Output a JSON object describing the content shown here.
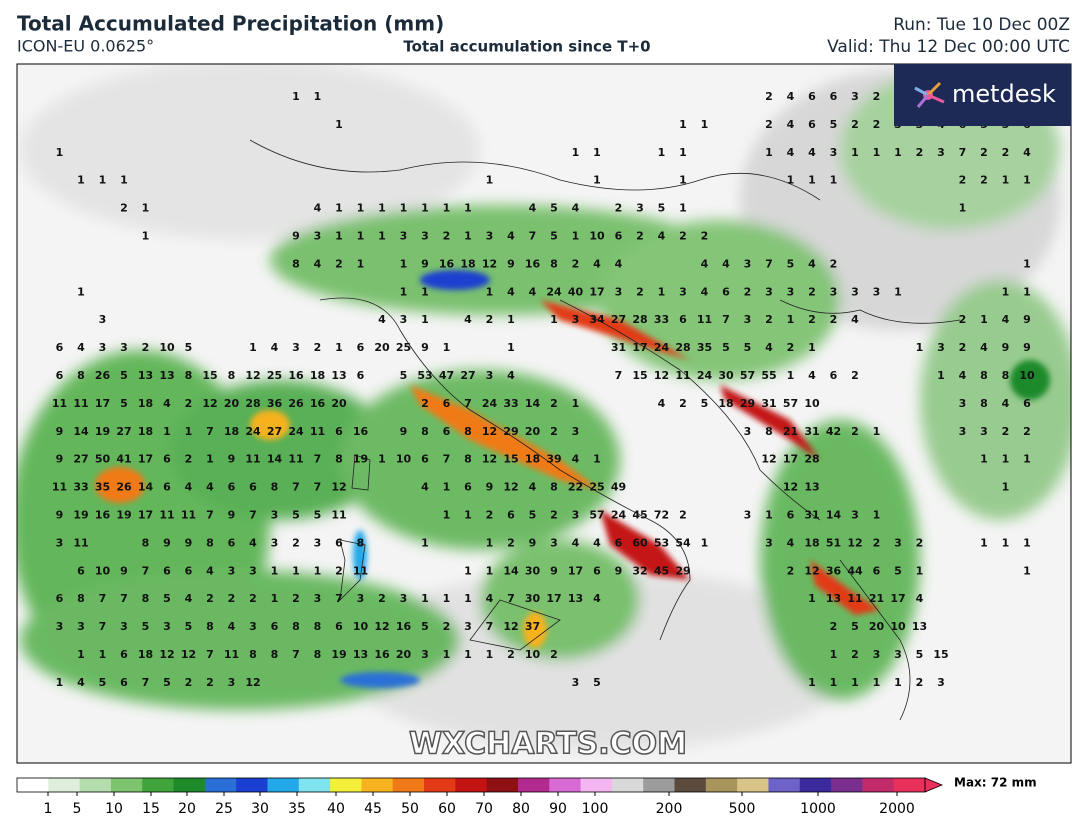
{
  "header": {
    "title": "Total Accumulated Precipitation (mm)",
    "model": "ICON-EU 0.0625°",
    "subtitle": "Total accumulation since T+0",
    "run": "Run: Tue 10 Dec 00Z",
    "valid": "Valid: Thu 12 Dec 00:00 UTC",
    "logo": "metdesk"
  },
  "watermark": "WXCHARTS.COM",
  "colorbar": {
    "labels": [
      1,
      5,
      10,
      15,
      20,
      25,
      30,
      35,
      40,
      45,
      50,
      60,
      70,
      80,
      90,
      100,
      200,
      500,
      1000,
      2000
    ],
    "max_label": "Max: 72 mm",
    "colors": [
      "#ffffff",
      "#dfeedd",
      "#b5dcad",
      "#7dc46e",
      "#3fa53a",
      "#1f8a2a",
      "#2a6fd8",
      "#1b3fd0",
      "#24a9e8",
      "#7fe3f0",
      "#f3ef3a",
      "#f6b21f",
      "#f07a18",
      "#e23a16",
      "#c41313",
      "#8e0f14",
      "#b22a8e",
      "#d86ad4",
      "#f3b6f0",
      "#d9d9d9",
      "#9c9c9c",
      "#5a4b3c",
      "#a8955c",
      "#d8c389",
      "#6d62c8",
      "#3a2a9e",
      "#7a2f8f",
      "#c22a6a",
      "#e8305a"
    ]
  },
  "map_labels": [
    [
      1,
      1
    ],
    [
      2,
      4,
      6,
      6,
      3,
      2
    ],
    [
      1
    ],
    [
      1,
      1
    ],
    [
      2,
      4,
      6,
      5,
      2,
      2,
      3,
      3,
      4,
      6,
      5,
      5,
      6
    ],
    [
      1
    ],
    [
      1,
      1
    ],
    [
      1,
      1
    ],
    [
      1,
      4,
      4,
      3,
      1,
      1,
      1,
      2,
      3,
      7,
      2,
      2,
      4
    ],
    [
      1,
      1,
      1
    ],
    [
      1
    ],
    [
      1
    ],
    [
      1
    ],
    [
      1,
      1,
      1
    ],
    [
      2,
      2,
      1
    ],
    [
      1
    ],
    [
      2,
      1
    ],
    [
      4,
      1,
      1,
      1,
      1,
      1,
      1,
      1
    ],
    [
      4,
      5,
      4
    ],
    [
      2,
      3,
      5,
      1
    ],
    [
      1
    ],
    [
      1
    ],
    [
      9,
      3,
      1,
      1,
      1,
      3,
      3,
      2,
      1,
      3,
      4,
      7,
      5,
      1,
      10,
      6,
      2,
      4,
      2,
      2
    ],
    [
      8,
      4,
      2,
      1
    ],
    [
      1,
      9,
      16,
      18,
      12,
      9,
      16,
      8,
      2,
      4,
      4
    ],
    [
      4,
      4,
      3,
      7,
      5,
      4,
      2
    ],
    [
      1
    ],
    [
      1
    ],
    [
      1,
      1
    ],
    [
      1,
      4,
      4,
      24,
      40,
      17,
      3,
      2,
      1,
      3,
      4,
      6,
      2,
      3,
      3,
      2,
      3,
      3,
      3,
      1
    ],
    [
      1,
      1
    ],
    [
      3
    ],
    [
      4,
      3,
      1
    ],
    [
      4,
      2,
      1
    ],
    [
      1,
      3,
      34,
      27,
      28,
      33,
      6,
      11,
      7,
      3,
      2,
      1,
      2,
      2,
      4
    ],
    [
      2,
      1,
      4,
      9
    ],
    [
      6,
      4,
      3,
      3,
      2,
      10,
      5
    ],
    [
      1,
      4,
      3,
      2
    ],
    [
      1,
      6,
      20,
      25,
      9,
      1
    ],
    [
      1
    ],
    [
      31,
      17,
      24,
      28,
      35,
      5,
      5,
      4,
      2,
      1
    ],
    [
      1,
      3,
      2,
      4,
      9,
      9
    ],
    [
      6,
      8,
      26,
      5,
      13,
      13,
      8,
      15,
      8,
      12,
      25,
      16,
      18,
      13,
      6
    ],
    [
      5,
      53,
      47,
      27,
      3,
      4
    ],
    [
      7,
      15,
      12,
      11,
      24,
      30,
      57,
      55,
      1,
      4,
      6,
      2
    ],
    [
      1,
      4,
      8,
      8,
      10
    ],
    [
      11,
      11,
      17,
      5,
      18,
      4,
      2,
      12,
      20,
      28,
      36,
      26,
      16,
      20
    ],
    [
      2,
      6,
      7,
      24,
      33,
      14,
      2,
      1
    ],
    [
      4,
      2,
      5,
      18,
      29,
      31,
      57,
      10
    ],
    [
      3,
      8,
      4,
      6
    ],
    [
      9,
      14,
      19,
      27,
      18,
      1,
      1,
      7,
      18,
      24,
      27,
      24,
      11,
      6,
      16
    ],
    [
      9,
      8,
      6,
      8,
      12,
      29,
      20,
      2,
      3
    ],
    [
      3,
      8,
      21,
      31,
      42,
      2,
      1
    ],
    [
      3,
      3,
      2,
      2
    ],
    [
      9,
      27,
      50,
      41,
      17,
      6,
      2,
      1,
      9,
      11,
      14,
      11,
      7,
      8,
      19,
      1,
      10,
      6,
      7,
      8,
      12,
      15,
      18,
      39,
      4,
      1
    ],
    [
      12,
      17,
      28
    ],
    [
      1,
      1,
      1
    ],
    [
      11,
      33,
      35,
      26,
      14,
      6,
      4,
      4,
      6,
      6,
      8,
      7,
      7,
      12
    ],
    [
      4,
      1,
      6,
      9,
      12,
      4,
      8,
      22,
      25,
      49
    ],
    [
      12,
      13
    ],
    [
      1
    ],
    [
      9,
      19,
      16,
      19,
      17,
      11,
      11,
      7,
      9,
      7,
      3,
      5,
      5,
      11
    ],
    [
      1,
      1,
      2,
      6,
      5,
      2,
      3,
      57,
      24,
      45,
      72,
      2
    ],
    [
      3,
      1,
      6,
      31,
      14,
      3,
      1
    ],
    [
      3,
      11
    ],
    [
      8,
      9,
      9,
      8,
      6,
      4,
      3,
      2,
      3,
      6,
      8
    ],
    [
      1
    ],
    [
      1,
      2,
      9,
      3,
      4,
      4,
      6,
      60,
      53,
      54,
      1
    ],
    [
      3,
      4,
      18,
      51,
      12,
      2,
      3,
      2
    ],
    [
      1,
      1,
      1
    ],
    [
      6,
      10,
      9,
      7,
      6,
      6,
      4,
      3,
      3,
      1,
      1,
      1,
      2,
      11
    ],
    [
      1,
      1,
      14,
      30,
      9,
      17,
      6,
      9,
      32,
      45,
      29
    ],
    [
      2,
      12,
      36,
      44,
      6,
      5,
      1
    ],
    [
      1
    ],
    [
      6,
      8,
      7,
      7,
      8,
      5,
      4,
      2,
      2,
      2,
      1,
      2,
      3,
      7,
      3,
      2,
      3,
      1,
      1,
      1,
      4,
      7,
      30,
      17,
      13,
      4
    ],
    [
      1,
      13,
      11,
      21,
      17,
      4
    ],
    [
      3,
      3,
      7,
      3,
      5,
      3,
      5,
      8,
      4,
      3,
      6,
      8,
      8,
      6,
      10,
      12,
      16,
      5,
      2,
      3,
      7,
      12,
      37
    ],
    [
      2,
      5,
      20,
      10,
      13
    ],
    [
      1,
      1,
      6,
      18,
      12,
      12,
      7,
      11,
      8,
      8,
      7,
      8,
      19,
      13,
      16,
      20,
      3,
      1,
      1,
      1,
      2,
      10,
      2
    ],
    [
      1,
      2,
      3,
      3,
      5,
      15
    ],
    [
      1,
      4,
      5,
      6,
      7,
      5,
      2,
      2,
      3,
      12
    ],
    [
      3,
      5
    ],
    [
      1,
      1,
      1,
      1,
      1,
      2,
      3
    ]
  ]
}
